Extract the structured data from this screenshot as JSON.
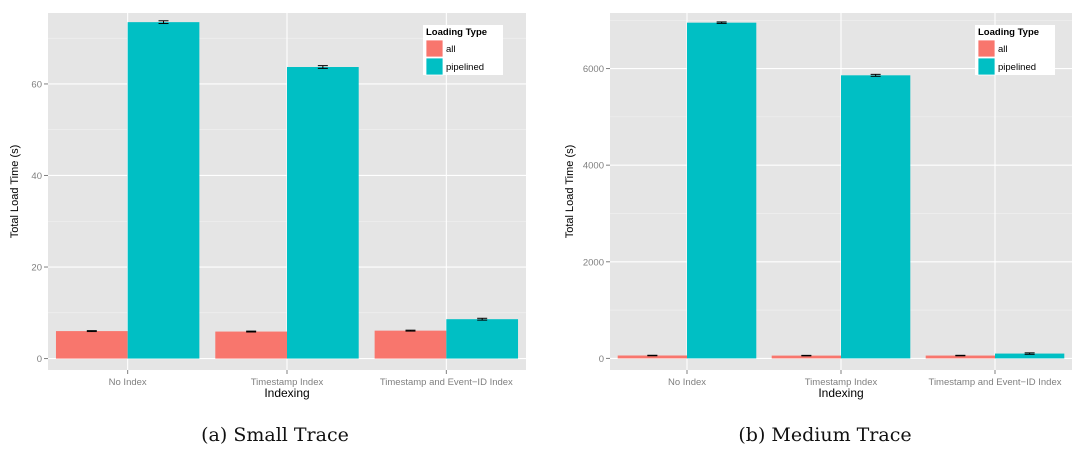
{
  "chart_data": [
    {
      "type": "bar",
      "xlabel": "Indexing",
      "ylabel": "Total Load Time (s)",
      "categories": [
        "No Index",
        "Timestamp Index",
        "Timestamp and Event−ID Index"
      ],
      "legend": {
        "title": "Loading Type",
        "placement": "top-right"
      },
      "series": [
        {
          "name": "all",
          "color": "#f8766d",
          "values": [
            6.0,
            5.9,
            6.1
          ],
          "errors": [
            0.1,
            0.1,
            0.1
          ]
        },
        {
          "name": "pipelined",
          "color": "#00bfc4",
          "values": [
            73.5,
            63.7,
            8.6
          ],
          "errors": [
            0.3,
            0.3,
            0.2
          ]
        }
      ],
      "ylim": [
        -2.5,
        75.5
      ],
      "yticks": [
        0,
        20,
        40,
        60
      ],
      "grid": true,
      "caption": "(a) Small Trace"
    },
    {
      "type": "bar",
      "xlabel": "Indexing",
      "ylabel": "Total Load Time (s)",
      "categories": [
        "No Index",
        "Timestamp Index",
        "Timestamp and Event−ID Index"
      ],
      "legend": {
        "title": "Loading Type",
        "placement": "top-right"
      },
      "series": [
        {
          "name": "all",
          "color": "#f8766d",
          "values": [
            60,
            58,
            59
          ],
          "errors": [
            5,
            5,
            5
          ]
        },
        {
          "name": "pipelined",
          "color": "#00bfc4",
          "values": [
            6950,
            5860,
            100
          ],
          "errors": [
            15,
            20,
            15
          ]
        }
      ],
      "ylim": [
        -240,
        7150
      ],
      "yticks": [
        0,
        2000,
        4000,
        6000
      ],
      "grid": true,
      "caption": "(b) Medium Trace"
    }
  ]
}
